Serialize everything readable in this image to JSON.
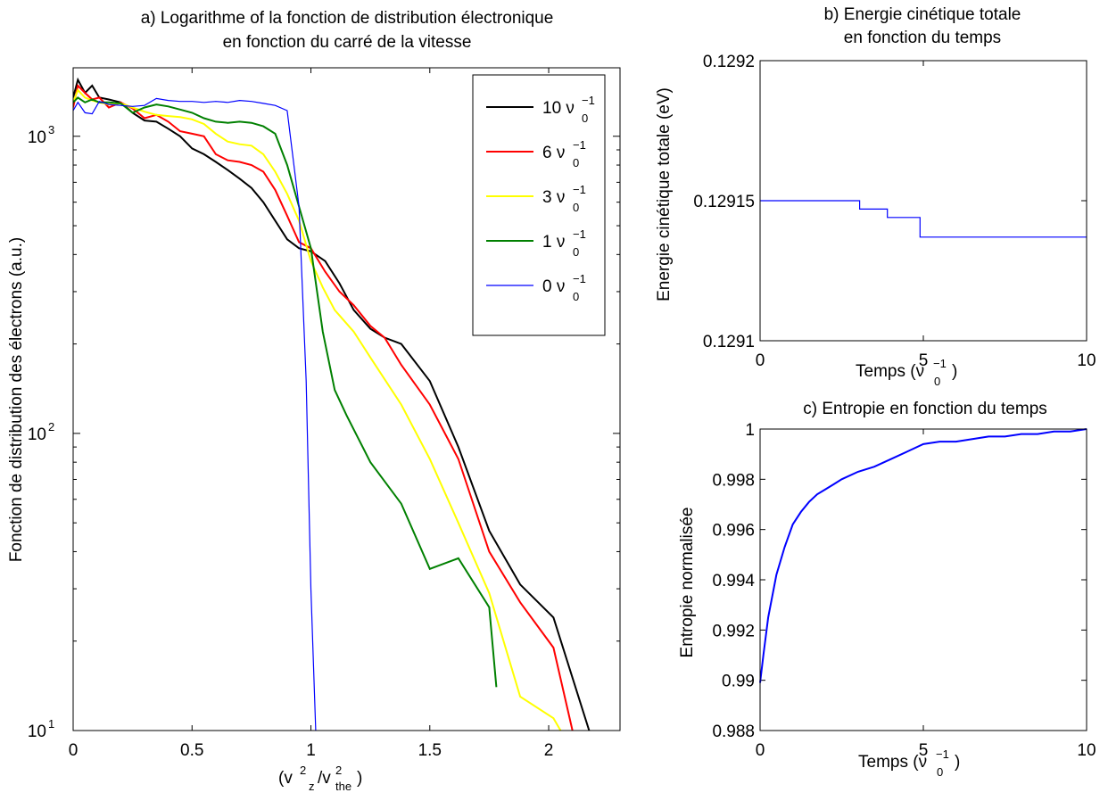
{
  "chart_data": [
    {
      "id": "a",
      "type": "line",
      "title_line1": "a) Logarithme of la fonction de distribution électronique",
      "title_line2": "en fonction du carré de la vitesse",
      "xlabel": "(v_z^2/v_the^2)",
      "ylabel": "Fonction de distribution des électrons (a.u.)",
      "xlim": [
        0,
        2.3
      ],
      "ylim": [
        10,
        1700
      ],
      "yscale": "log",
      "xticks": [
        0,
        0.5,
        1,
        1.5,
        2
      ],
      "xtick_labels": [
        "0",
        "0.5",
        "1",
        "1.5",
        "2"
      ],
      "yticks": [
        10,
        100,
        1000
      ],
      "ytick_labels": [
        "10^1",
        "10^2",
        "10^3"
      ],
      "legend_position": "top-right",
      "series": [
        {
          "name": "10 ν0^-1",
          "color": "#000000",
          "x": [
            0,
            0.02,
            0.05,
            0.08,
            0.11,
            0.15,
            0.2,
            0.25,
            0.3,
            0.35,
            0.4,
            0.45,
            0.5,
            0.55,
            0.6,
            0.65,
            0.7,
            0.75,
            0.8,
            0.85,
            0.9,
            0.95,
            1.0,
            1.06,
            1.12,
            1.18,
            1.25,
            1.31,
            1.38,
            1.5,
            1.62,
            1.75,
            1.88,
            2.02,
            2.17
          ],
          "y": [
            1350,
            1550,
            1400,
            1480,
            1350,
            1330,
            1300,
            1200,
            1130,
            1120,
            1060,
            1000,
            910,
            870,
            820,
            770,
            720,
            670,
            600,
            520,
            450,
            420,
            410,
            380,
            320,
            260,
            225,
            210,
            200,
            150,
            90,
            47,
            31,
            24,
            10
          ]
        },
        {
          "name": "6 ν0^-1",
          "color": "#ff0000",
          "x": [
            0,
            0.02,
            0.05,
            0.08,
            0.11,
            0.15,
            0.2,
            0.25,
            0.3,
            0.35,
            0.4,
            0.45,
            0.5,
            0.55,
            0.6,
            0.65,
            0.7,
            0.75,
            0.8,
            0.85,
            0.9,
            0.95,
            1.0,
            1.06,
            1.12,
            1.18,
            1.25,
            1.31,
            1.38,
            1.5,
            1.62,
            1.75,
            1.88,
            2.02,
            2.1
          ],
          "y": [
            1250,
            1480,
            1400,
            1330,
            1350,
            1250,
            1300,
            1240,
            1150,
            1180,
            1120,
            1040,
            1020,
            1000,
            870,
            830,
            820,
            800,
            760,
            660,
            540,
            440,
            420,
            350,
            300,
            270,
            230,
            210,
            170,
            125,
            82,
            40,
            27,
            19,
            10
          ]
        },
        {
          "name": "3 ν0^-1",
          "color": "#ffff00",
          "x": [
            0,
            0.02,
            0.05,
            0.08,
            0.11,
            0.15,
            0.2,
            0.25,
            0.3,
            0.35,
            0.4,
            0.45,
            0.5,
            0.55,
            0.6,
            0.65,
            0.7,
            0.75,
            0.8,
            0.85,
            0.9,
            0.95,
            1.0,
            1.05,
            1.1,
            1.18,
            1.25,
            1.38,
            1.5,
            1.62,
            1.75,
            1.88,
            2.02,
            2.05
          ],
          "y": [
            1300,
            1430,
            1350,
            1320,
            1300,
            1280,
            1290,
            1250,
            1210,
            1180,
            1170,
            1160,
            1140,
            1100,
            1020,
            960,
            940,
            930,
            870,
            760,
            640,
            520,
            380,
            310,
            260,
            220,
            180,
            125,
            82,
            50,
            29,
            13,
            11,
            10
          ]
        },
        {
          "name": "1 ν0^-1",
          "color": "#008000",
          "x": [
            0,
            0.02,
            0.05,
            0.08,
            0.11,
            0.15,
            0.2,
            0.25,
            0.3,
            0.35,
            0.4,
            0.45,
            0.5,
            0.55,
            0.6,
            0.65,
            0.7,
            0.75,
            0.8,
            0.85,
            0.9,
            0.95,
            1.0,
            1.05,
            1.1,
            1.15,
            1.25,
            1.38,
            1.5,
            1.62,
            1.75,
            1.78
          ],
          "y": [
            1300,
            1350,
            1300,
            1330,
            1300,
            1300,
            1290,
            1200,
            1250,
            1280,
            1260,
            1230,
            1200,
            1150,
            1120,
            1110,
            1120,
            1110,
            1080,
            1020,
            800,
            580,
            420,
            220,
            140,
            115,
            80,
            58,
            35,
            38,
            26,
            14
          ]
        },
        {
          "name": "0 ν0^-1",
          "color": "#0000ff",
          "x": [
            0,
            0.02,
            0.05,
            0.08,
            0.11,
            0.15,
            0.2,
            0.25,
            0.3,
            0.35,
            0.4,
            0.45,
            0.5,
            0.55,
            0.6,
            0.65,
            0.7,
            0.75,
            0.8,
            0.85,
            0.9,
            0.95,
            0.98,
            1.0,
            1.02
          ],
          "y": [
            1220,
            1300,
            1200,
            1190,
            1310,
            1280,
            1270,
            1260,
            1270,
            1340,
            1320,
            1310,
            1310,
            1300,
            1310,
            1300,
            1320,
            1310,
            1290,
            1270,
            1220,
            580,
            150,
            30,
            10
          ]
        }
      ]
    },
    {
      "id": "b",
      "type": "line",
      "title_line1": "b) Energie cinétique totale",
      "title_line2": "en fonction du temps",
      "xlabel": "Temps (ν0^-1)",
      "ylabel": "Energie cinétique totale (eV)",
      "xlim": [
        0,
        10
      ],
      "ylim": [
        0.1291,
        0.1292
      ],
      "xticks": [
        0,
        5,
        10
      ],
      "xtick_labels": [
        "0",
        "5",
        "10"
      ],
      "yticks": [
        0.1291,
        0.12915,
        0.1292
      ],
      "ytick_labels": [
        "0.1291",
        "0.12915",
        "0.1292"
      ],
      "series": [
        {
          "color": "#0000ff",
          "x": [
            0,
            3.05,
            3.05,
            3.9,
            3.9,
            4.9,
            4.9,
            10
          ],
          "y": [
            0.12915,
            0.12915,
            0.129147,
            0.129147,
            0.129144,
            0.129144,
            0.129137,
            0.129137
          ]
        }
      ]
    },
    {
      "id": "c",
      "type": "line",
      "title_line1": "c) Entropie en fonction du temps",
      "title_line2": "",
      "xlabel": "Temps (ν0^-1)",
      "ylabel": "Entropie normalisée",
      "xlim": [
        0,
        10
      ],
      "ylim": [
        0.988,
        1.0
      ],
      "xticks": [
        0,
        5,
        10
      ],
      "xtick_labels": [
        "0",
        "5",
        "10"
      ],
      "yticks": [
        0.988,
        0.99,
        0.992,
        0.994,
        0.996,
        0.998,
        1.0
      ],
      "ytick_labels": [
        "0.988",
        "0.99",
        "0.992",
        "0.994",
        "0.996",
        "0.998",
        "1"
      ],
      "series": [
        {
          "color": "#0000ff",
          "x": [
            0,
            0.1,
            0.25,
            0.5,
            0.75,
            1.0,
            1.25,
            1.5,
            1.75,
            2.0,
            2.25,
            2.5,
            3.0,
            3.5,
            4.0,
            4.5,
            5.0,
            5.5,
            6.0,
            6.5,
            7.0,
            7.5,
            8.0,
            8.5,
            9.0,
            9.5,
            10.0
          ],
          "y": [
            0.9899,
            0.991,
            0.9925,
            0.9942,
            0.9953,
            0.9962,
            0.9967,
            0.9971,
            0.9974,
            0.9976,
            0.9978,
            0.998,
            0.9983,
            0.9985,
            0.9988,
            0.9991,
            0.9994,
            0.9995,
            0.9995,
            0.9996,
            0.9997,
            0.9997,
            0.9998,
            0.9998,
            0.9999,
            0.9999,
            1.0
          ]
        }
      ]
    }
  ]
}
